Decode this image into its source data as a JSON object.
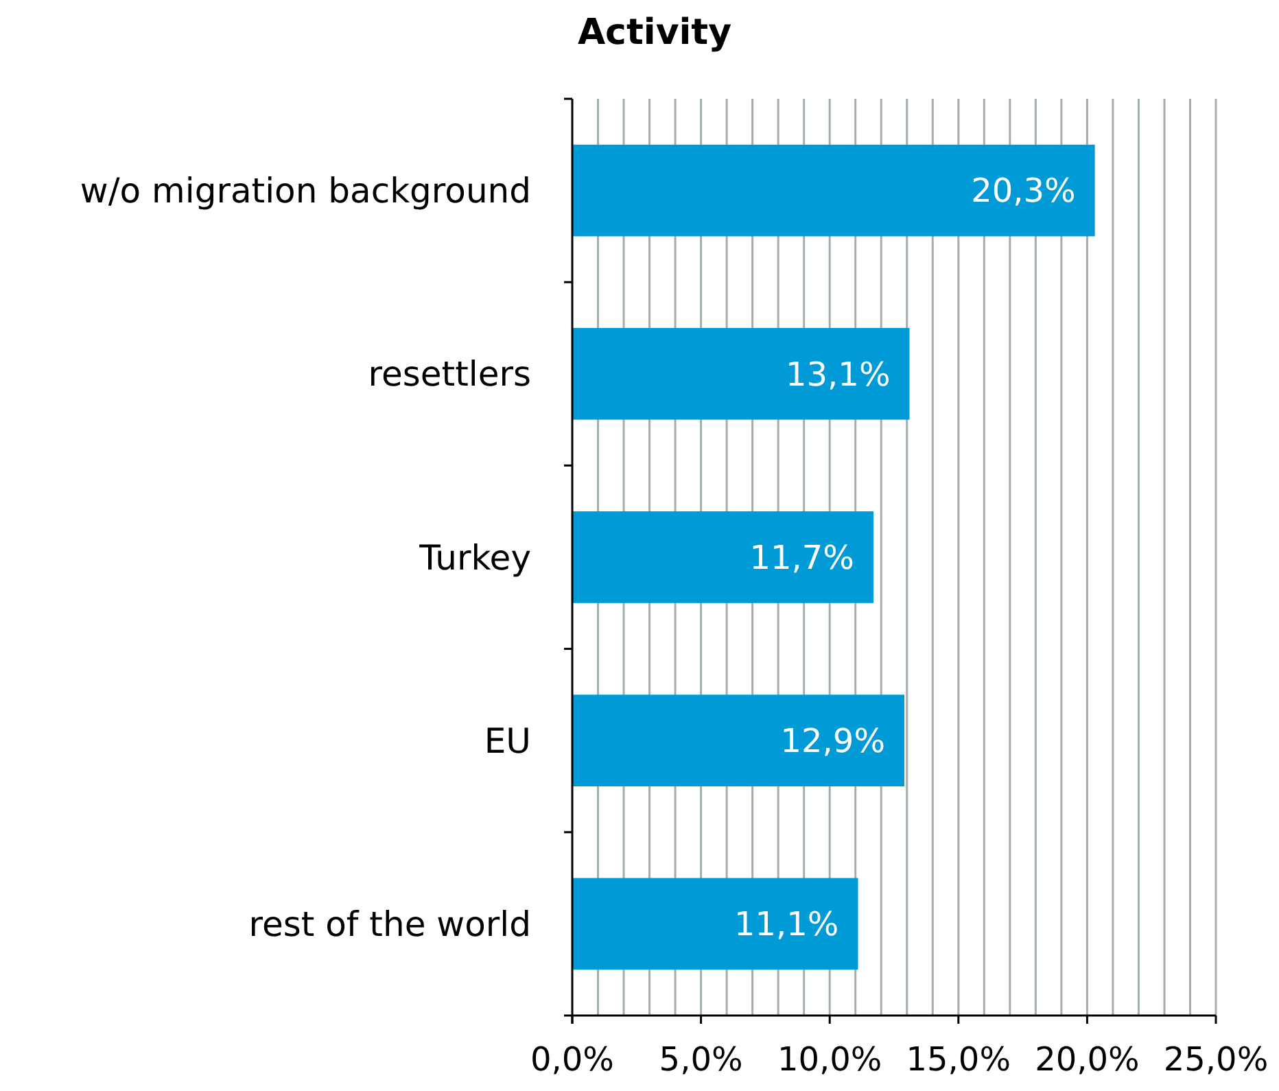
{
  "chart_data": {
    "type": "bar",
    "orientation": "horizontal",
    "title": "Activity",
    "categories": [
      "w/o migration background",
      "resettlers",
      "Turkey",
      "EU",
      "rest of the world"
    ],
    "values": [
      20.3,
      13.1,
      11.7,
      12.9,
      11.1
    ],
    "value_labels": [
      "20,3%",
      "13,1%",
      "11,7%",
      "12,9%",
      "11,1%"
    ],
    "color": "#009ad6",
    "xlim": [
      0,
      25
    ],
    "xticks": [
      {
        "value": 0,
        "label": "0,0%"
      },
      {
        "value": 1,
        "label": null
      },
      {
        "value": 2,
        "label": null
      },
      {
        "value": 3,
        "label": null
      },
      {
        "value": 4,
        "label": null
      },
      {
        "value": 5,
        "label": "5,0%"
      },
      {
        "value": 6,
        "label": null
      },
      {
        "value": 7,
        "label": null
      },
      {
        "value": 8,
        "label": null
      },
      {
        "value": 9,
        "label": null
      },
      {
        "value": 10,
        "label": "10,0%"
      },
      {
        "value": 11,
        "label": null
      },
      {
        "value": 12,
        "label": null
      },
      {
        "value": 13,
        "label": null
      },
      {
        "value": 14,
        "label": null
      },
      {
        "value": 15,
        "label": "15,0%"
      },
      {
        "value": 16,
        "label": null
      },
      {
        "value": 17,
        "label": null
      },
      {
        "value": 18,
        "label": null
      },
      {
        "value": 19,
        "label": null
      },
      {
        "value": 20,
        "label": "20,0%"
      },
      {
        "value": 21,
        "label": null
      },
      {
        "value": 22,
        "label": null
      },
      {
        "value": 23,
        "label": null
      },
      {
        "value": 24,
        "label": null
      },
      {
        "value": 25,
        "label": "25,0%"
      }
    ],
    "grid": "x"
  }
}
